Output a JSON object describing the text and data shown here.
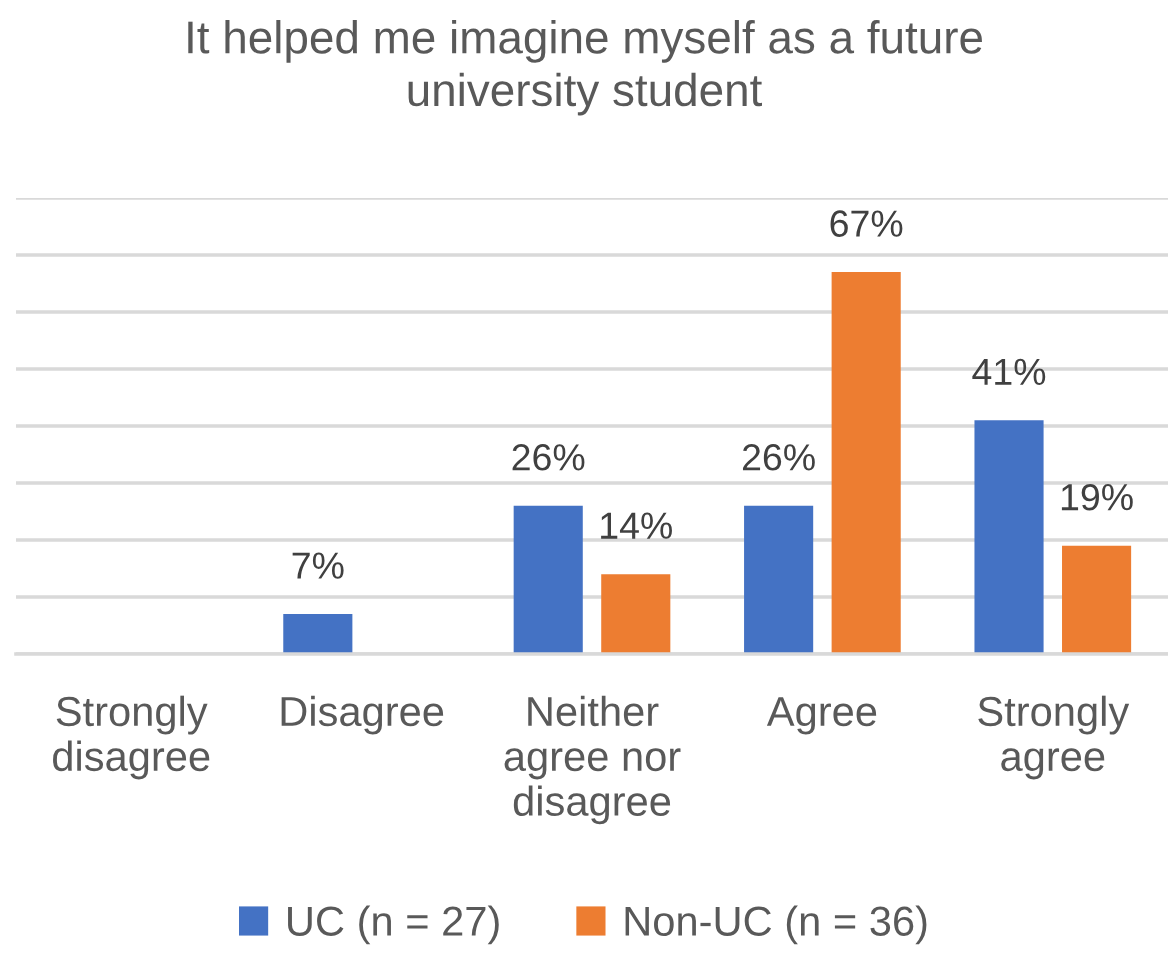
{
  "chart_data": {
    "type": "bar",
    "title": "It helped me imagine myself as a future university student",
    "categories": [
      "Strongly disagree",
      "Disagree",
      "Neither agree nor disagree",
      "Agree",
      "Strongly agree"
    ],
    "series": [
      {
        "name": "UC (n = 27)",
        "color": "#4472c4",
        "values": [
          null,
          7,
          26,
          26,
          41
        ],
        "value_labels": [
          null,
          "7%",
          "26%",
          "26%",
          "41%"
        ]
      },
      {
        "name": "Non-UC (n = 36)",
        "color": "#ed7d31",
        "values": [
          null,
          null,
          14,
          67,
          19
        ],
        "value_labels": [
          null,
          null,
          "14%",
          "67%",
          "19%"
        ]
      }
    ],
    "ylim": [
      0,
      80
    ],
    "yticks": [
      {
        "value": 0,
        "label": null
      },
      {
        "value": 10,
        "label": null
      },
      {
        "value": 20,
        "label": null
      },
      {
        "value": 30,
        "label": null
      },
      {
        "value": 40,
        "label": null
      },
      {
        "value": 50,
        "label": null
      },
      {
        "value": 60,
        "label": null
      },
      {
        "value": 70,
        "label": null
      },
      {
        "value": 80,
        "label": null
      }
    ],
    "grid": "y",
    "legend": "bottom",
    "tick_labels": "x"
  }
}
